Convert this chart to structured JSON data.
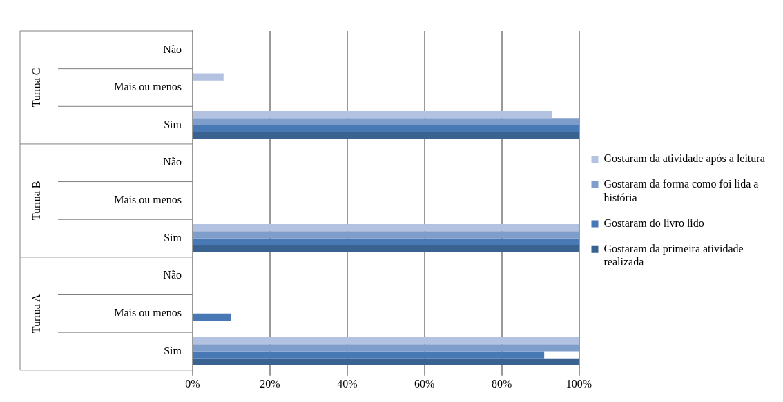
{
  "chart_data": {
    "type": "bar",
    "orientation": "horizontal",
    "categories": [
      "Não",
      "Mais ou menos",
      "Sim",
      "Não",
      "Mais ou menos",
      "Sim",
      "Não",
      "Mais ou menos",
      "Sim"
    ],
    "series": [
      {
        "name": "Gostaram da atividade após a leitura",
        "color": "#b3c2e0",
        "values": [
          0,
          8,
          93,
          0,
          0,
          100,
          0,
          0,
          100
        ]
      },
      {
        "name": "Gostaram da forma como foi lida a história",
        "color": "#7f9dcb",
        "values": [
          0,
          0,
          100,
          0,
          0,
          100,
          0,
          0,
          100
        ]
      },
      {
        "name": "Gostaram do livro lido",
        "color": "#4879b5",
        "values": [
          0,
          0,
          100,
          0,
          0,
          100,
          0,
          10,
          91
        ]
      },
      {
        "name": "Gostaram da primeira atividade realizada",
        "color": "#3a6291",
        "values": [
          0,
          0,
          100,
          0,
          0,
          100,
          0,
          0,
          100
        ]
      }
    ],
    "annotations": [
      "Turma C",
      "Turma B",
      "Turma A"
    ],
    "xlim": [
      0,
      100
    ],
    "xticks": [
      {
        "value": 0,
        "label": "0%"
      },
      {
        "value": 20,
        "label": "20%"
      },
      {
        "value": 40,
        "label": "40%"
      },
      {
        "value": 60,
        "label": "60%"
      },
      {
        "value": 80,
        "label": "80%"
      },
      {
        "value": 100,
        "label": "100%"
      }
    ],
    "grid": "x",
    "legend": "right"
  }
}
